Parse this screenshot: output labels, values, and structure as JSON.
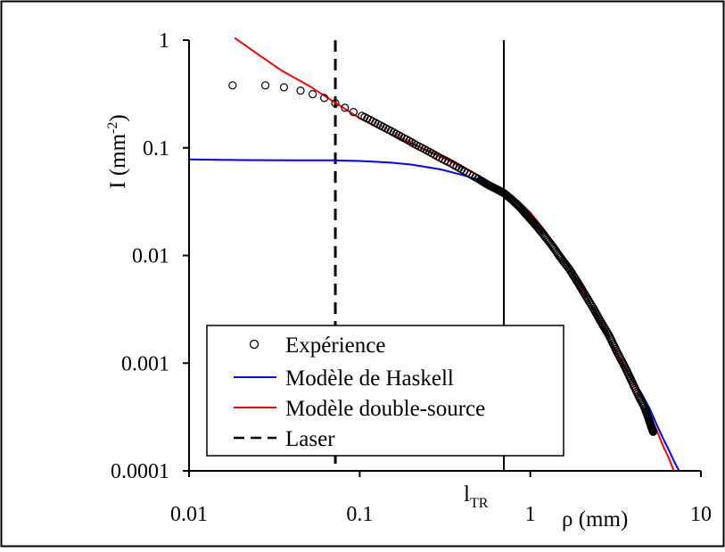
{
  "chart_data": {
    "type": "scatter",
    "xscale": "log",
    "yscale": "log",
    "xlim": [
      0.01,
      10
    ],
    "ylim": [
      0.0001,
      1
    ],
    "xlabel": "ρ (mm)",
    "ylabel": "I (mm-2)",
    "ylabel_main": "I (mm",
    "ylabel_sup": "-2",
    "ylabel_close": ")",
    "xticks": [
      0.01,
      0.1,
      1,
      10
    ],
    "xtick_labels": [
      "0.01",
      "0.1",
      "1",
      "10"
    ],
    "yticks": [
      1,
      0.1,
      0.01,
      0.001,
      0.0001
    ],
    "ytick_labels": [
      "1",
      "0.1",
      "0.01",
      "0.001",
      "0.0001"
    ],
    "grid": false,
    "legend_position": "bottom-left",
    "vlines": [
      {
        "name": "Laser",
        "x": 0.072,
        "style": "dashed"
      },
      {
        "name": "l_TR",
        "x": 0.7,
        "style": "solid",
        "label_main": "l",
        "label_sub": "TR"
      }
    ],
    "series": [
      {
        "name": "Expérience",
        "kind": "markers",
        "color": "#000000",
        "points": [
          [
            0.018,
            0.38
          ],
          [
            0.028,
            0.38
          ],
          [
            0.036,
            0.365
          ],
          [
            0.045,
            0.34
          ],
          [
            0.053,
            0.315
          ],
          [
            0.062,
            0.29
          ],
          [
            0.072,
            0.26
          ],
          [
            0.082,
            0.235
          ],
          [
            0.092,
            0.215
          ],
          [
            0.103,
            0.198
          ],
          [
            0.115,
            0.182
          ],
          [
            0.128,
            0.166
          ],
          [
            0.142,
            0.152
          ],
          [
            0.158,
            0.139
          ],
          [
            0.175,
            0.127
          ],
          [
            0.195,
            0.116
          ],
          [
            0.215,
            0.106
          ],
          [
            0.24,
            0.097
          ],
          [
            0.265,
            0.089
          ],
          [
            0.295,
            0.081
          ],
          [
            0.33,
            0.074
          ],
          [
            0.37,
            0.067
          ],
          [
            0.41,
            0.061
          ],
          [
            0.46,
            0.055
          ],
          [
            0.51,
            0.05
          ],
          [
            0.57,
            0.045
          ],
          [
            0.64,
            0.041
          ],
          [
            0.7,
            0.038
          ],
          [
            0.78,
            0.033
          ],
          [
            0.87,
            0.028
          ],
          [
            0.97,
            0.023
          ],
          [
            1.08,
            0.019
          ],
          [
            1.2,
            0.0155
          ],
          [
            1.35,
            0.0122
          ],
          [
            1.5,
            0.0096
          ],
          [
            1.7,
            0.0074
          ],
          [
            1.9,
            0.0056
          ],
          [
            2.1,
            0.0043
          ],
          [
            2.35,
            0.0032
          ],
          [
            2.6,
            0.0024
          ],
          [
            2.9,
            0.0018
          ],
          [
            3.2,
            0.0013
          ],
          [
            3.55,
            0.00095
          ],
          [
            3.9,
            0.0007
          ],
          [
            4.3,
            0.0005
          ],
          [
            4.7,
            0.00038
          ],
          [
            4.95,
            0.0003
          ],
          [
            5.15,
            0.00025
          ],
          [
            5.25,
            0.00023
          ]
        ]
      },
      {
        "name": "Modèle de Haskell",
        "kind": "line",
        "color": "#0000ff",
        "points": [
          [
            0.01,
            0.078
          ],
          [
            0.02,
            0.077
          ],
          [
            0.04,
            0.0765
          ],
          [
            0.07,
            0.0765
          ],
          [
            0.1,
            0.0755
          ],
          [
            0.15,
            0.073
          ],
          [
            0.2,
            0.07
          ],
          [
            0.3,
            0.063
          ],
          [
            0.4,
            0.056
          ],
          [
            0.5,
            0.05
          ],
          [
            0.6,
            0.045
          ],
          [
            0.7,
            0.04
          ],
          [
            0.85,
            0.032
          ],
          [
            1.0,
            0.025
          ],
          [
            1.2,
            0.0175
          ],
          [
            1.5,
            0.0105
          ],
          [
            2.0,
            0.005
          ],
          [
            2.5,
            0.0026
          ],
          [
            3.0,
            0.0015
          ],
          [
            3.5,
            0.00095
          ],
          [
            4.0,
            0.0007
          ],
          [
            4.5,
            0.00052
          ],
          [
            5.0,
            0.00038
          ],
          [
            5.5,
            0.00027
          ],
          [
            6.0,
            0.0002
          ],
          [
            6.5,
            0.000155
          ],
          [
            7.0,
            0.00012
          ],
          [
            7.6,
            9.45e-05
          ]
        ]
      },
      {
        "name": "Modèle double-source",
        "kind": "line",
        "color": "#ff0000",
        "points": [
          [
            0.0185,
            1.05
          ],
          [
            0.025,
            0.75
          ],
          [
            0.035,
            0.52
          ],
          [
            0.05,
            0.38
          ],
          [
            0.07,
            0.27
          ],
          [
            0.1,
            0.188
          ],
          [
            0.15,
            0.135
          ],
          [
            0.2,
            0.11
          ],
          [
            0.3,
            0.083
          ],
          [
            0.4,
            0.066
          ],
          [
            0.5,
            0.055
          ],
          [
            0.6,
            0.046
          ],
          [
            0.7,
            0.04
          ],
          [
            0.85,
            0.032
          ],
          [
            1.0,
            0.025
          ],
          [
            1.2,
            0.0175
          ],
          [
            1.5,
            0.0105
          ],
          [
            2.0,
            0.005
          ],
          [
            2.5,
            0.0026
          ],
          [
            3.0,
            0.0015
          ],
          [
            3.5,
            0.00095
          ],
          [
            4.0,
            0.00068
          ],
          [
            4.5,
            0.00048
          ],
          [
            5.0,
            0.00034
          ],
          [
            5.5,
            0.00024
          ],
          [
            6.0,
            0.00017
          ],
          [
            6.5,
            0.00013
          ],
          [
            7.0,
            9.65e-05
          ]
        ]
      },
      {
        "name": "Laser",
        "kind": "legend-only-dashed",
        "color": "#000000"
      }
    ]
  }
}
